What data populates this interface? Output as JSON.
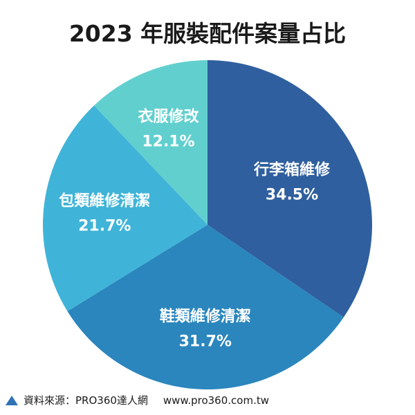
{
  "chart_data": {
    "type": "pie",
    "title": "2023 年服裝配件案量占比",
    "slices": [
      {
        "label": "行李箱維修",
        "value": 34.5,
        "value_label": "34.5%",
        "color": "#2f5f9e"
      },
      {
        "label": "鞋類維修清潔",
        "value": 31.7,
        "value_label": "31.7%",
        "color": "#2b86bd"
      },
      {
        "label": "包類維修清潔",
        "value": 21.7,
        "value_label": "21.7%",
        "color": "#3fb4d8"
      },
      {
        "label": "衣服修改",
        "value": 12.1,
        "value_label": "12.1%",
        "color": "#62cfcf"
      }
    ],
    "start_angle": "12 o'clock",
    "direction": "clockwise"
  },
  "source": {
    "text": "資料來源：PRO360達人網",
    "url": "www.pro360.com.tw",
    "icon": "triangle-icon",
    "icon_color": "#2f73b5"
  }
}
